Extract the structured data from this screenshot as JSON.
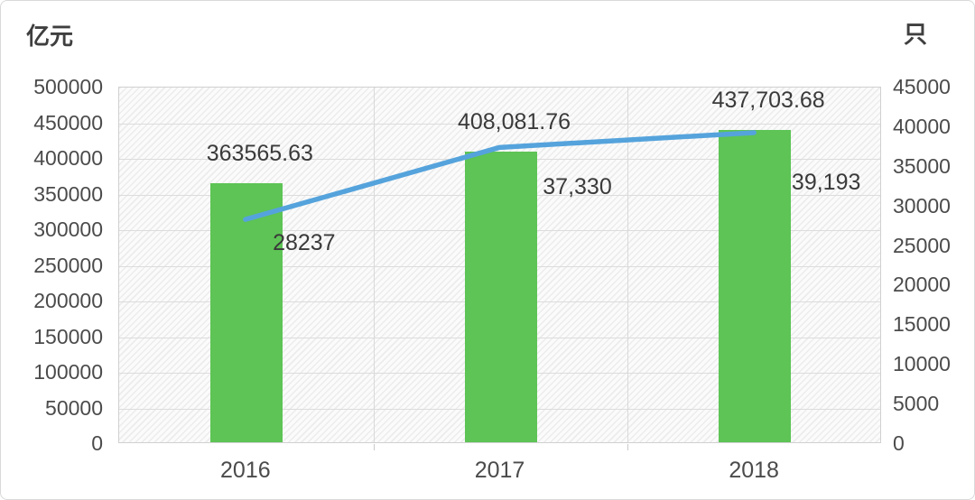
{
  "chart_data": {
    "type": "bar+line",
    "title": "",
    "categories": [
      "2016",
      "2017",
      "2018"
    ],
    "series": [
      {
        "name": "bar-series",
        "type": "bar",
        "axis": "left",
        "color": "#5dc455",
        "values": [
          363565.63,
          408081.76,
          437703.68
        ],
        "labels": [
          "363565.63",
          "408,081.76",
          "437,703.68"
        ]
      },
      {
        "name": "line-series",
        "type": "line",
        "axis": "right",
        "color": "#55a3dc",
        "values": [
          28237,
          37330,
          39193
        ],
        "labels": [
          "28237",
          "37,330",
          "39,193"
        ]
      }
    ],
    "left_axis": {
      "unit": "亿元",
      "min": 0,
      "max": 500000,
      "step": 50000
    },
    "right_axis": {
      "unit": "只",
      "min": 0,
      "max": 45000,
      "step": 5000
    },
    "grid": true,
    "legend": "none",
    "plot_background": "diagonal-hatch"
  },
  "colors": {
    "bar": "#5dc455",
    "line": "#55a3dc",
    "grid": "#dcdcdc",
    "plot_border": "#d0d0d0",
    "tick_text": "#4b4b4b",
    "label_text": "#3a3a3a"
  }
}
